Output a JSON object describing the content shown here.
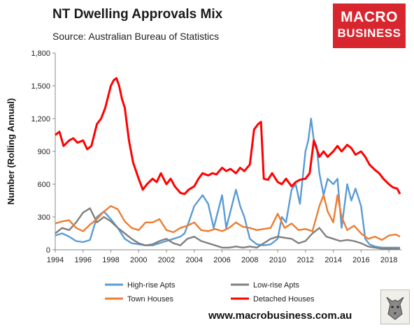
{
  "title": "NT Dwelling Approvals Mix",
  "subtitle": "Source: Australian Bureau of Statistics",
  "logo": {
    "line1": "MACRO",
    "line2": "BUSINESS"
  },
  "footer_url": "www.macrobusiness.com.au",
  "badge_icon": "wolf-badge-icon",
  "colors": {
    "high_rise": "#5b9bd5",
    "low_rise": "#7f7f7f",
    "town_houses": "#ed7d31",
    "detached": "#ff0000",
    "logo_bg": "#d8262e"
  },
  "chart_data": {
    "type": "line",
    "title": "NT Dwelling Approvals Mix",
    "xlabel": "",
    "ylabel": "Number (Rolling Annual)",
    "xlim": [
      1994,
      2018.9
    ],
    "ylim": [
      0,
      1800
    ],
    "x_ticks": [
      "1994",
      "1996",
      "1998",
      "2000",
      "2002",
      "2004",
      "2006",
      "2008",
      "2010",
      "2012",
      "2014",
      "2016",
      "2018"
    ],
    "y_ticks": [
      "0",
      "300",
      "600",
      "900",
      "1,200",
      "1,500",
      "1,800"
    ],
    "grid": false,
    "legend_position": "bottom",
    "series": [
      {
        "name": "High-rise Apts",
        "color": "#5b9bd5",
        "x": [
          1994,
          1994.5,
          1995,
          1995.5,
          1996,
          1996.5,
          1997,
          1997.5,
          1998,
          1998.5,
          1999,
          1999.5,
          2000,
          2000.5,
          2001,
          2001.5,
          2002,
          2002.5,
          2003,
          2003.3,
          2003.6,
          2004,
          2004.3,
          2004.6,
          2005,
          2005.4,
          2005.7,
          2006,
          2006.3,
          2006.6,
          2007,
          2007.3,
          2007.6,
          2008,
          2008.5,
          2009,
          2009.5,
          2010,
          2010.3,
          2010.6,
          2011,
          2011.3,
          2011.6,
          2012,
          2012.2,
          2012.4,
          2012.6,
          2012.8,
          2013,
          2013.3,
          2013.6,
          2014,
          2014.3,
          2014.6,
          2015,
          2015.3,
          2015.6,
          2016,
          2016.3,
          2016.6,
          2017,
          2017.5,
          2018,
          2018.5,
          2018.8
        ],
        "values": [
          130,
          150,
          120,
          80,
          70,
          90,
          300,
          350,
          280,
          200,
          100,
          60,
          50,
          40,
          40,
          60,
          80,
          100,
          120,
          150,
          250,
          400,
          450,
          500,
          420,
          200,
          350,
          500,
          200,
          350,
          550,
          400,
          300,
          100,
          50,
          40,
          50,
          100,
          300,
          250,
          550,
          600,
          420,
          900,
          1000,
          1200,
          1000,
          950,
          700,
          500,
          650,
          600,
          650,
          200,
          600,
          450,
          560,
          400,
          100,
          50,
          30,
          20,
          20,
          20,
          20
        ]
      },
      {
        "name": "Low-rise Apts",
        "color": "#7f7f7f",
        "x": [
          1994,
          1994.5,
          1995,
          1995.5,
          1996,
          1996.5,
          1997,
          1997.5,
          1998,
          1998.5,
          1999,
          1999.5,
          2000,
          2000.5,
          2001,
          2001.5,
          2002,
          2002.5,
          2003,
          2003.5,
          2004,
          2004.5,
          2005,
          2005.5,
          2006,
          2006.5,
          2007,
          2007.5,
          2008,
          2008.5,
          2009,
          2009.5,
          2010,
          2010.5,
          2011,
          2011.5,
          2012,
          2012.5,
          2013,
          2013.5,
          2014,
          2014.5,
          2015,
          2015.5,
          2016,
          2016.5,
          2017,
          2017.5,
          2018,
          2018.5,
          2018.8
        ],
        "values": [
          150,
          200,
          180,
          250,
          340,
          380,
          250,
          300,
          260,
          200,
          150,
          100,
          60,
          40,
          50,
          80,
          100,
          60,
          40,
          100,
          120,
          80,
          60,
          40,
          20,
          20,
          30,
          20,
          30,
          20,
          60,
          100,
          120,
          110,
          100,
          60,
          80,
          150,
          200,
          120,
          100,
          80,
          90,
          80,
          60,
          30,
          20,
          10,
          10,
          10,
          10
        ]
      },
      {
        "name": "Town Houses",
        "color": "#ed7d31",
        "x": [
          1994,
          1994.5,
          1995,
          1995.5,
          1996,
          1996.5,
          1997,
          1997.5,
          1998,
          1998.5,
          1999,
          1999.5,
          2000,
          2000.5,
          2001,
          2001.5,
          2002,
          2002.5,
          2003,
          2003.5,
          2004,
          2004.5,
          2005,
          2005.5,
          2006,
          2006.5,
          2007,
          2007.5,
          2008,
          2008.5,
          2009,
          2009.5,
          2010,
          2010.5,
          2011,
          2011.5,
          2012,
          2012.5,
          2013,
          2013.3,
          2013.6,
          2014,
          2014.3,
          2014.6,
          2015,
          2015.5,
          2016,
          2016.5,
          2017,
          2017.5,
          2018,
          2018.5,
          2018.8
        ],
        "values": [
          240,
          260,
          270,
          200,
          170,
          230,
          280,
          350,
          400,
          370,
          260,
          200,
          180,
          250,
          250,
          280,
          180,
          160,
          200,
          220,
          250,
          180,
          170,
          190,
          170,
          200,
          250,
          210,
          200,
          180,
          190,
          200,
          330,
          200,
          240,
          180,
          190,
          170,
          400,
          500,
          350,
          250,
          500,
          300,
          180,
          220,
          150,
          100,
          120,
          90,
          130,
          140,
          120
        ]
      },
      {
        "name": "Detached Houses",
        "color": "#ff0000",
        "x": [
          1994,
          1994.3,
          1994.6,
          1995,
          1995.3,
          1995.6,
          1996,
          1996.3,
          1996.6,
          1997,
          1997.3,
          1997.6,
          1998,
          1998.2,
          1998.4,
          1998.6,
          1998.8,
          1999,
          1999.3,
          1999.6,
          2000,
          2000.3,
          2000.6,
          2001,
          2001.3,
          2001.6,
          2002,
          2002.3,
          2002.6,
          2003,
          2003.3,
          2003.6,
          2004,
          2004.3,
          2004.6,
          2005,
          2005.3,
          2005.6,
          2006,
          2006.3,
          2006.6,
          2007,
          2007.3,
          2007.6,
          2008,
          2008.3,
          2008.6,
          2008.8,
          2009,
          2009.3,
          2009.6,
          2010,
          2010.3,
          2010.6,
          2011,
          2011.3,
          2011.6,
          2012,
          2012.3,
          2012.6,
          2013,
          2013.3,
          2013.6,
          2014,
          2014.3,
          2014.6,
          2015,
          2015.3,
          2015.6,
          2016,
          2016.3,
          2016.6,
          2017,
          2017.3,
          2017.6,
          2018,
          2018.3,
          2018.6,
          2018.8
        ],
        "values": [
          1050,
          1080,
          950,
          1000,
          1020,
          980,
          1000,
          920,
          950,
          1150,
          1200,
          1300,
          1500,
          1550,
          1570,
          1500,
          1380,
          1300,
          1000,
          800,
          650,
          550,
          600,
          650,
          620,
          700,
          600,
          650,
          580,
          520,
          510,
          550,
          580,
          650,
          700,
          680,
          700,
          690,
          750,
          720,
          740,
          700,
          750,
          720,
          780,
          1100,
          1150,
          1170,
          650,
          640,
          700,
          620,
          600,
          650,
          580,
          620,
          640,
          650,
          700,
          1000,
          850,
          900,
          850,
          900,
          950,
          900,
          960,
          930,
          870,
          900,
          850,
          780,
          730,
          700,
          650,
          600,
          570,
          560,
          510
        ]
      }
    ]
  }
}
